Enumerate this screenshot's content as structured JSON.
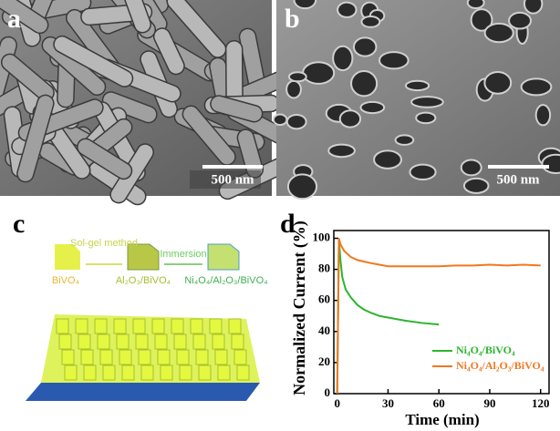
{
  "panels": {
    "a": {
      "label": "a",
      "scale_bar": "500 nm"
    },
    "b": {
      "label": "b",
      "scale_bar": "500 nm"
    },
    "c": {
      "label": "c",
      "steps": [
        "BiVO₄",
        "Sol-gel method",
        "Al₂O₃/BiVO₄",
        "Immersion",
        "Ni₄O₄/Al₂O₃/BiVO₄"
      ]
    },
    "d": {
      "label": "d"
    }
  },
  "chart_data": {
    "type": "line",
    "x_label": "Time (min)",
    "y_label": "Normalized Current (%)",
    "xlim": [
      -2,
      125
    ],
    "ylim": [
      0,
      105
    ],
    "xticks": [
      0,
      30,
      60,
      90,
      120
    ],
    "yticks": [
      0,
      20,
      40,
      60,
      80,
      100
    ],
    "legend": "lower right",
    "series": [
      {
        "name": "Ni₄O₄/BiVO₄",
        "color": "#2db52d",
        "x": [
          0,
          1,
          2,
          3,
          5,
          8,
          12,
          16,
          20,
          25,
          30,
          40,
          50,
          60
        ],
        "values": [
          0,
          99,
          85,
          75,
          67,
          62,
          57,
          54,
          52,
          50,
          49,
          47,
          45.5,
          44.5
        ]
      },
      {
        "name": "Ni₄O₄/Al₂O₃/BiVO₄",
        "color": "#f07820",
        "x": [
          0,
          1,
          2,
          4,
          8,
          12,
          16,
          20,
          25,
          30,
          40,
          50,
          60,
          70,
          80,
          90,
          100,
          110,
          120
        ],
        "values": [
          0,
          100,
          96,
          92,
          88,
          86,
          85,
          84,
          83,
          82,
          82,
          82,
          82,
          82.5,
          82.5,
          83,
          82.5,
          83,
          82.5
        ]
      }
    ]
  }
}
